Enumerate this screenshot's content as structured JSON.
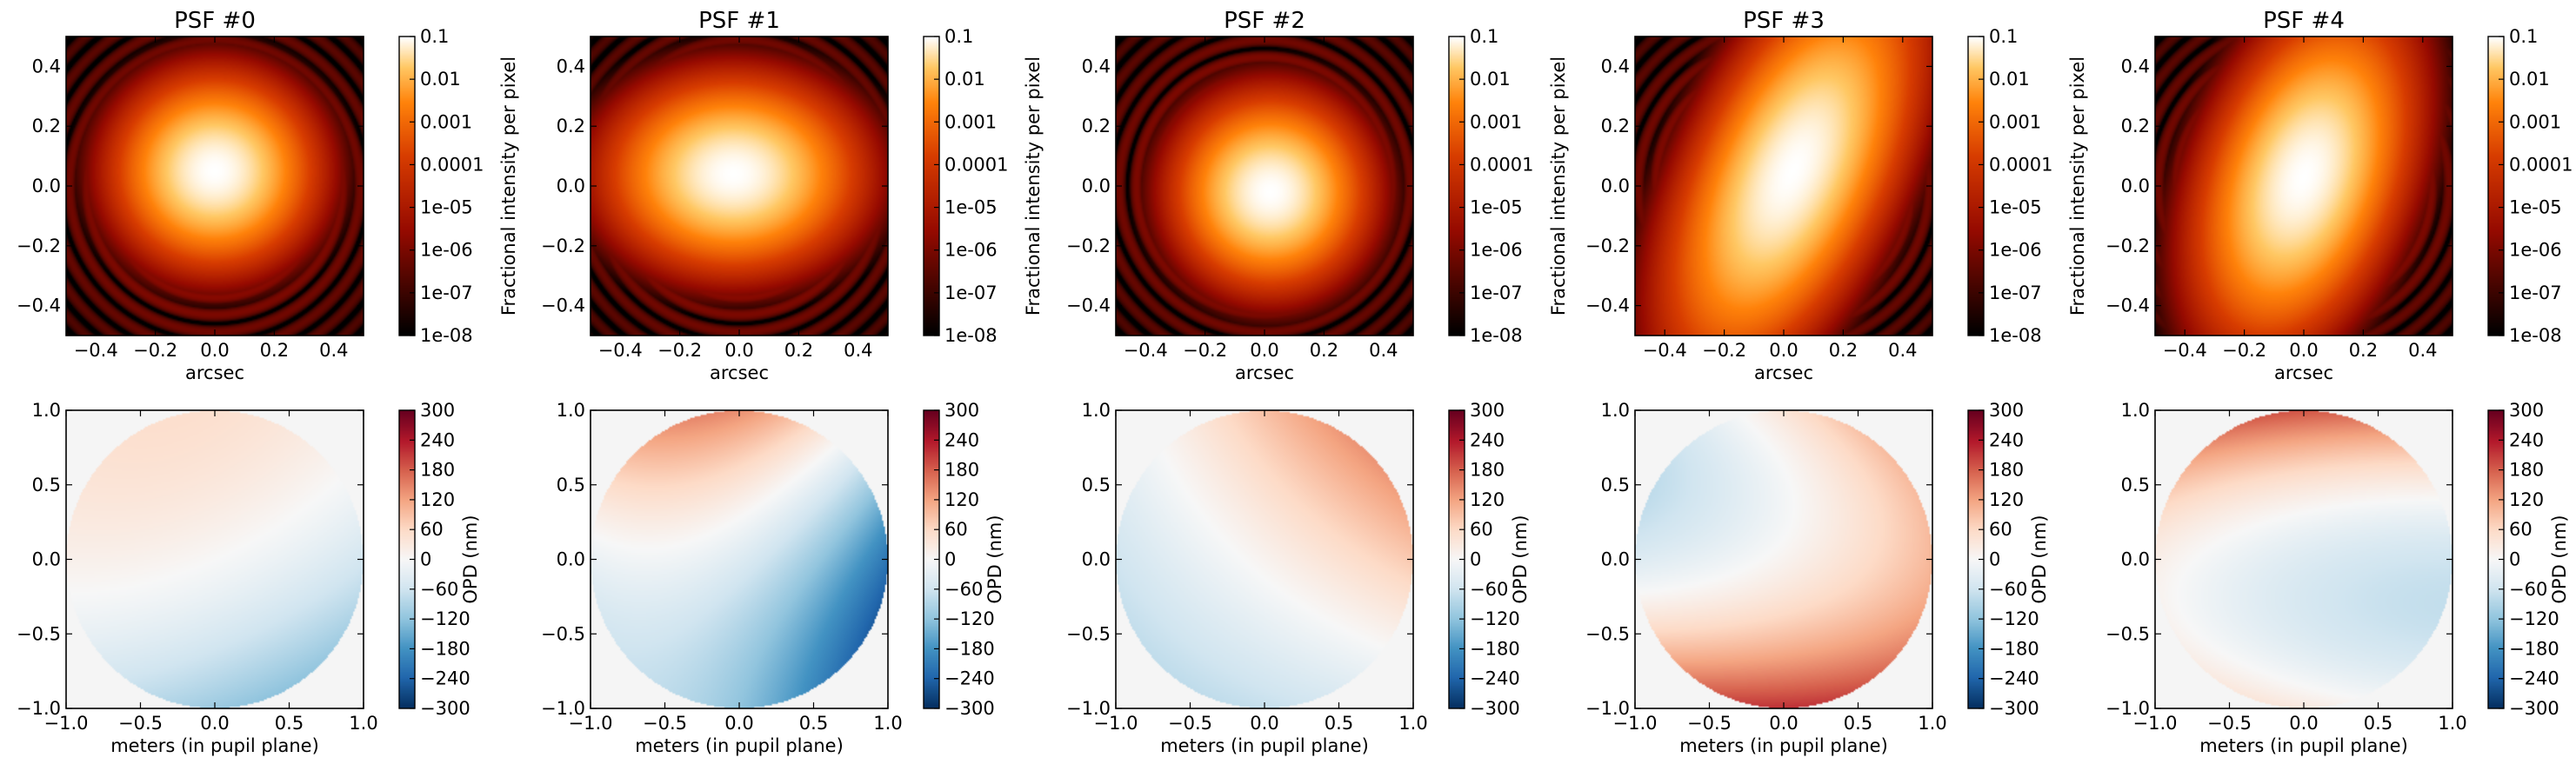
{
  "figure": {
    "psf_titles": [
      "PSF #0",
      "PSF #1",
      "PSF #2",
      "PSF #3",
      "PSF #4"
    ],
    "psf_xlabel": "arcsec",
    "opd_xlabel": "meters (in pupil plane)",
    "psf_colorbar_label": "Fractional intensity per pixel",
    "opd_colorbar_label": "OPD (nm)",
    "psf_colormap": "gist_heat",
    "opd_colormap": "RdBu_r",
    "masked_background_color": "#f5f5f5"
  },
  "chart_data": [
    {
      "type": "heatmap",
      "title": "PSF #0",
      "xlabel": "arcsec",
      "ylabel": "",
      "xlim": [
        -0.5,
        0.5
      ],
      "ylim": [
        -0.5,
        0.5
      ],
      "xticks": [
        "−0.4",
        "−0.2",
        "0.0",
        "0.2",
        "0.4"
      ],
      "yticks": [
        "0.4",
        "0.2",
        "0.0",
        "−0.2",
        "−0.4"
      ],
      "colorbar": {
        "label": "Fractional intensity per pixel",
        "scale": "log",
        "range": [
          1e-08,
          0.1
        ],
        "ticks": [
          "0.1",
          "0.01",
          "0.001",
          "0.0001",
          "1e-05",
          "1e-06",
          "1e-07",
          "1e-08"
        ]
      },
      "core": {
        "x": 0.0,
        "y": 0.05,
        "elongation": 1.05,
        "angle_deg": 0
      }
    },
    {
      "type": "heatmap",
      "title": "PSF #1",
      "xlabel": "arcsec",
      "ylabel": "",
      "xlim": [
        -0.5,
        0.5
      ],
      "ylim": [
        -0.5,
        0.5
      ],
      "xticks": [
        "−0.4",
        "−0.2",
        "0.0",
        "0.2",
        "0.4"
      ],
      "yticks": [
        "0.4",
        "0.2",
        "0.0",
        "−0.2",
        "−0.4"
      ],
      "colorbar": {
        "label": "Fractional intensity per pixel",
        "scale": "log",
        "range": [
          1e-08,
          0.1
        ],
        "ticks": [
          "0.1",
          "0.01",
          "0.001",
          "0.0001",
          "1e-05",
          "1e-06",
          "1e-07",
          "1e-08"
        ]
      },
      "core": {
        "x": -0.02,
        "y": 0.04,
        "elongation": 1.3,
        "angle_deg": 0
      }
    },
    {
      "type": "heatmap",
      "title": "PSF #2",
      "xlabel": "arcsec",
      "ylabel": "",
      "xlim": [
        -0.5,
        0.5
      ],
      "ylim": [
        -0.5,
        0.5
      ],
      "xticks": [
        "−0.4",
        "−0.2",
        "0.0",
        "0.2",
        "0.4"
      ],
      "yticks": [
        "0.4",
        "0.2",
        "0.0",
        "−0.2",
        "−0.4"
      ],
      "colorbar": {
        "label": "Fractional intensity per pixel",
        "scale": "log",
        "range": [
          1e-08,
          0.1
        ],
        "ticks": [
          "0.1",
          "0.01",
          "0.001",
          "0.0001",
          "1e-05",
          "1e-06",
          "1e-07",
          "1e-08"
        ]
      },
      "core": {
        "x": 0.02,
        "y": -0.02,
        "elongation": 1.0,
        "angle_deg": 0
      }
    },
    {
      "type": "heatmap",
      "title": "PSF #3",
      "xlabel": "arcsec",
      "ylabel": "",
      "xlim": [
        -0.5,
        0.5
      ],
      "ylim": [
        -0.5,
        0.5
      ],
      "xticks": [
        "−0.4",
        "−0.2",
        "0.0",
        "0.2",
        "0.4"
      ],
      "yticks": [
        "0.4",
        "0.2",
        "0.0",
        "−0.2",
        "−0.4"
      ],
      "colorbar": {
        "label": "Fractional intensity per pixel",
        "scale": "log",
        "range": [
          1e-08,
          0.1
        ],
        "ticks": [
          "0.1",
          "0.01",
          "0.001",
          "0.0001",
          "1e-05",
          "1e-06",
          "1e-07",
          "1e-08"
        ]
      },
      "core": {
        "x": 0.03,
        "y": 0.05,
        "elongation": 2.2,
        "angle_deg": 65
      }
    },
    {
      "type": "heatmap",
      "title": "PSF #4",
      "xlabel": "arcsec",
      "ylabel": "",
      "xlim": [
        -0.5,
        0.5
      ],
      "ylim": [
        -0.5,
        0.5
      ],
      "xticks": [
        "−0.4",
        "−0.2",
        "0.0",
        "0.2",
        "0.4"
      ],
      "yticks": [
        "0.4",
        "0.2",
        "0.0",
        "−0.2",
        "−0.4"
      ],
      "colorbar": {
        "label": "Fractional intensity per pixel",
        "scale": "log",
        "range": [
          1e-08,
          0.1
        ],
        "ticks": [
          "0.1",
          "0.01",
          "0.001",
          "0.0001",
          "1e-05",
          "1e-06",
          "1e-07",
          "1e-08"
        ]
      },
      "core": {
        "x": 0.0,
        "y": 0.03,
        "elongation": 1.8,
        "angle_deg": 70
      }
    },
    {
      "type": "heatmap",
      "title": "",
      "xlabel": "meters (in pupil plane)",
      "ylabel": "",
      "xlim": [
        -1.0,
        1.0
      ],
      "ylim": [
        -1.0,
        1.0
      ],
      "xticks": [
        "−1.0",
        "−0.5",
        "0.0",
        "0.5",
        "1.0"
      ],
      "yticks": [
        "1.0",
        "0.5",
        "0.0",
        "−0.5",
        "−1.0"
      ],
      "colorbar": {
        "label": "OPD (nm)",
        "range": [
          -300,
          300
        ],
        "ticks": [
          "300",
          "240",
          "180",
          "120",
          "60",
          "0",
          "−60",
          "−120",
          "−180",
          "−240",
          "−300"
        ]
      },
      "opd_field": {
        "c": 0,
        "x": -35,
        "y": 80,
        "x2": -20,
        "y2": -30,
        "xy": 20
      }
    },
    {
      "type": "heatmap",
      "title": "",
      "xlabel": "meters (in pupil plane)",
      "ylabel": "",
      "xlim": [
        -1.0,
        1.0
      ],
      "ylim": [
        -1.0,
        1.0
      ],
      "xticks": [
        "−1.0",
        "−0.5",
        "0.0",
        "0.5",
        "1.0"
      ],
      "yticks": [
        "1.0",
        "0.5",
        "0.0",
        "−0.5",
        "−1.0"
      ],
      "colorbar": {
        "label": "OPD (nm)",
        "range": [
          -300,
          300
        ],
        "ticks": [
          "300",
          "240",
          "180",
          "120",
          "60",
          "0",
          "−60",
          "−120",
          "−180",
          "−240",
          "−300"
        ]
      },
      "opd_field": {
        "c": -40,
        "x": -100,
        "y": 130,
        "x2": -80,
        "y2": 50,
        "xy": 20
      }
    },
    {
      "type": "heatmap",
      "title": "",
      "xlabel": "meters (in pupil plane)",
      "ylabel": "",
      "xlim": [
        -1.0,
        1.0
      ],
      "ylim": [
        -1.0,
        1.0
      ],
      "xticks": [
        "−1.0",
        "−0.5",
        "0.0",
        "0.5",
        "1.0"
      ],
      "yticks": [
        "1.0",
        "0.5",
        "0.0",
        "−0.5",
        "−1.0"
      ],
      "colorbar": {
        "label": "OPD (nm)",
        "range": [
          -300,
          300
        ],
        "ticks": [
          "300",
          "240",
          "180",
          "120",
          "60",
          "0",
          "−60",
          "−120",
          "−180",
          "−240",
          "−300"
        ]
      },
      "opd_field": {
        "c": 10,
        "x": 70,
        "y": 80,
        "x2": 0,
        "y2": 0,
        "xy": 40
      }
    },
    {
      "type": "heatmap",
      "title": "",
      "xlabel": "meters (in pupil plane)",
      "ylabel": "",
      "xlim": [
        -1.0,
        1.0
      ],
      "ylim": [
        -1.0,
        1.0
      ],
      "xticks": [
        "−1.0",
        "−0.5",
        "0.0",
        "0.5",
        "1.0"
      ],
      "yticks": [
        "1.0",
        "0.5",
        "0.0",
        "−0.5",
        "−1.0"
      ],
      "colorbar": {
        "label": "OPD (nm)",
        "range": [
          -300,
          300
        ],
        "ticks": [
          "300",
          "240",
          "180",
          "120",
          "60",
          "0",
          "−60",
          "−120",
          "−180",
          "−240",
          "−300"
        ]
      },
      "opd_field": {
        "c": 10,
        "x": 70,
        "y": -90,
        "x2": 20,
        "y2": 120,
        "xy": 60
      }
    },
    {
      "type": "heatmap",
      "title": "",
      "xlabel": "meters (in pupil plane)",
      "ylabel": "",
      "xlim": [
        -1.0,
        1.0
      ],
      "ylim": [
        -1.0,
        1.0
      ],
      "xticks": [
        "−1.0",
        "−0.5",
        "0.0",
        "0.5",
        "1.0"
      ],
      "yticks": [
        "1.0",
        "0.5",
        "0.0",
        "−0.5",
        "−1.0"
      ],
      "colorbar": {
        "label": "OPD (nm)",
        "range": [
          -300,
          300
        ],
        "ticks": [
          "300",
          "240",
          "180",
          "120",
          "60",
          "0",
          "−60",
          "−120",
          "−180",
          "−240",
          "−300"
        ]
      },
      "opd_field": {
        "c": -40,
        "x": -40,
        "y": 80,
        "x2": 20,
        "y2": 150,
        "xy": 10
      }
    }
  ]
}
